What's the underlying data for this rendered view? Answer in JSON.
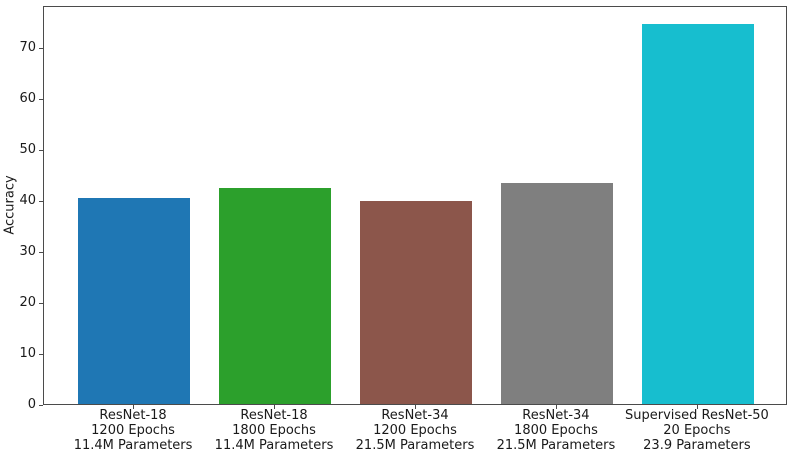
{
  "chart_data": {
    "type": "bar",
    "title": "",
    "xlabel": "",
    "ylabel": "Accuracy",
    "ylim": [
      0,
      78.2
    ],
    "yticks": [
      0,
      10,
      20,
      30,
      40,
      50,
      60,
      70
    ],
    "grid": false,
    "legend": "none",
    "categories": [
      [
        "ResNet-18",
        "1200 Epochs",
        "11.4M Parameters"
      ],
      [
        "ResNet-18",
        "1800 Epochs",
        "11.4M Parameters"
      ],
      [
        "ResNet-34",
        "1200 Epochs",
        "21.5M Parameters"
      ],
      [
        "ResNet-34",
        "1800 Epochs",
        "21.5M Parameters"
      ],
      [
        "Supervised ResNet-50",
        "20 Epochs",
        "23.9 Parameters"
      ]
    ],
    "values": [
      40.3,
      42.3,
      39.7,
      43.4,
      74.4
    ],
    "bar_colors": [
      "#1f77b4",
      "#2ca02c",
      "#8c564b",
      "#7f7f7f",
      "#17becf"
    ],
    "axis_color": "#4b4b4b",
    "text_color": "#1a1a1a",
    "background_color": "#ffffff"
  }
}
